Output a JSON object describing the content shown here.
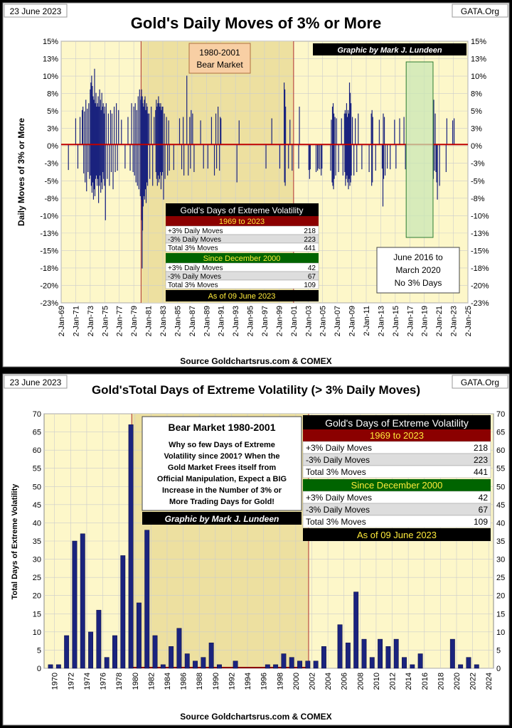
{
  "colors": {
    "plot_bg": "#fdf7c9",
    "bear_bg": "#ede0a0",
    "bar": "#1a237e",
    "zero_line": "#c00000",
    "green_box": "#c9e7b4"
  },
  "chart_data": [
    {
      "type": "bar",
      "date_label": "23 June 2023",
      "source_tag": "GATA.Org",
      "title": "Gold's Daily Moves of 3% or More",
      "ylabel": "Daily Moves  of  3% or More",
      "source": "Source Goldchartsrus.com & COMEX",
      "credit": "Graphic by Mark J. Lundeen",
      "ylim": [
        -23,
        15
      ],
      "y_ticks": [
        "15%",
        "13%",
        "10%",
        "8%",
        "5%",
        "3%",
        "0%",
        "-3%",
        "-5%",
        "-8%",
        "-10%",
        "-13%",
        "-15%",
        "-18%",
        "-20%",
        "-23%"
      ],
      "x_ticks": [
        "2-Jan-69",
        "2-Jan-71",
        "2-Jan-73",
        "2-Jan-75",
        "2-Jan-77",
        "2-Jan-79",
        "2-Jan-81",
        "2-Jan-83",
        "2-Jan-85",
        "2-Jan-87",
        "2-Jan-89",
        "2-Jan-91",
        "2-Jan-93",
        "2-Jan-95",
        "2-Jan-97",
        "2-Jan-99",
        "2-Jan-01",
        "2-Jan-03",
        "2-Jan-05",
        "2-Jan-07",
        "2-Jan-09",
        "2-Jan-11",
        "2-Jan-13",
        "2-Jan-15",
        "2-Jan-17",
        "2-Jan-19",
        "2-Jan-21",
        "2-Jan-23",
        "2-Jan-25"
      ],
      "bear_label": [
        "1980-2001",
        "Bear Market"
      ],
      "no_move_label": [
        "June 2016 to",
        "March 2020",
        "No 3% Days"
      ],
      "moves": [
        [
          1970.0,
          -3.7
        ],
        [
          1971.0,
          3.8
        ],
        [
          1971.3,
          -3.5
        ],
        [
          1971.6,
          4.0
        ],
        [
          1971.9,
          5.0
        ],
        [
          1972.0,
          5.5
        ],
        [
          1972.1,
          -4.2
        ],
        [
          1972.2,
          4.8
        ],
        [
          1972.3,
          -5.5
        ],
        [
          1972.4,
          6.5
        ],
        [
          1972.5,
          -6.8
        ],
        [
          1972.6,
          5.2
        ],
        [
          1972.7,
          -4.0
        ],
        [
          1972.8,
          6.0
        ],
        [
          1972.9,
          -5.0
        ],
        [
          1973.0,
          8.0
        ],
        [
          1973.05,
          -4.5
        ],
        [
          1973.1,
          9.0
        ],
        [
          1973.15,
          -6.0
        ],
        [
          1973.2,
          10.0
        ],
        [
          1973.25,
          -7.0
        ],
        [
          1973.3,
          8.5
        ],
        [
          1973.35,
          -5.5
        ],
        [
          1973.4,
          7.0
        ],
        [
          1973.45,
          -8.0
        ],
        [
          1973.5,
          6.5
        ],
        [
          1973.55,
          -6.5
        ],
        [
          1973.6,
          11.0
        ],
        [
          1973.65,
          -7.5
        ],
        [
          1973.7,
          6.0
        ],
        [
          1973.75,
          -5.0
        ],
        [
          1973.8,
          7.5
        ],
        [
          1973.85,
          -4.5
        ],
        [
          1973.9,
          5.5
        ],
        [
          1973.95,
          -6.0
        ],
        [
          1974.0,
          6.0
        ],
        [
          1974.05,
          -5.0
        ],
        [
          1974.1,
          7.0
        ],
        [
          1974.15,
          -8.5
        ],
        [
          1974.2,
          5.5
        ],
        [
          1974.25,
          -6.0
        ],
        [
          1974.3,
          8.0
        ],
        [
          1974.35,
          -4.5
        ],
        [
          1974.4,
          6.5
        ],
        [
          1974.45,
          -7.0
        ],
        [
          1974.5,
          5.0
        ],
        [
          1974.55,
          -5.5
        ],
        [
          1974.6,
          7.5
        ],
        [
          1974.65,
          -6.5
        ],
        [
          1974.7,
          5.5
        ],
        [
          1974.75,
          -4.0
        ],
        [
          1974.8,
          6.0
        ],
        [
          1974.85,
          -5.0
        ],
        [
          1974.9,
          4.5
        ],
        [
          1974.95,
          -6.0
        ],
        [
          1975.0,
          5.5
        ],
        [
          1975.1,
          -11.0
        ],
        [
          1975.2,
          6.0
        ],
        [
          1975.35,
          -5.0
        ],
        [
          1975.5,
          4.5
        ],
        [
          1975.65,
          -6.0
        ],
        [
          1975.8,
          5.0
        ],
        [
          1975.9,
          -4.0
        ],
        [
          1976.0,
          4.5
        ],
        [
          1976.15,
          -6.5
        ],
        [
          1976.3,
          5.5
        ],
        [
          1976.45,
          -4.0
        ],
        [
          1976.6,
          6.0
        ],
        [
          1976.75,
          -3.8
        ],
        [
          1976.9,
          5.0
        ],
        [
          1977.3,
          3.6
        ],
        [
          1977.8,
          -3.5
        ],
        [
          1978.2,
          4.0
        ],
        [
          1978.5,
          -3.8
        ],
        [
          1978.7,
          6.0
        ],
        [
          1978.9,
          -4.0
        ],
        [
          1979.0,
          5.5
        ],
        [
          1979.1,
          -4.5
        ],
        [
          1979.2,
          6.0
        ],
        [
          1979.3,
          -5.5
        ],
        [
          1979.4,
          5.0
        ],
        [
          1979.5,
          -6.0
        ],
        [
          1979.6,
          7.0
        ],
        [
          1979.7,
          -6.5
        ],
        [
          1979.8,
          8.0
        ],
        [
          1979.9,
          -7.5
        ],
        [
          1979.95,
          6.5
        ],
        [
          1980.0,
          7.0
        ],
        [
          1980.03,
          -8.0
        ],
        [
          1980.06,
          8.0
        ],
        [
          1980.09,
          -11.0
        ],
        [
          1980.12,
          6.5
        ],
        [
          1980.15,
          -18.0
        ],
        [
          1980.18,
          7.0
        ],
        [
          1980.21,
          -12.5
        ],
        [
          1980.25,
          6.0
        ],
        [
          1980.3,
          -9.0
        ],
        [
          1980.35,
          5.5
        ],
        [
          1980.4,
          -7.5
        ],
        [
          1980.45,
          6.5
        ],
        [
          1980.5,
          -8.0
        ],
        [
          1980.55,
          7.0
        ],
        [
          1980.6,
          -6.5
        ],
        [
          1980.65,
          5.0
        ],
        [
          1980.7,
          -8.5
        ],
        [
          1980.75,
          6.0
        ],
        [
          1980.8,
          -5.5
        ],
        [
          1980.85,
          5.5
        ],
        [
          1980.9,
          -6.0
        ],
        [
          1980.95,
          4.5
        ],
        [
          1981.1,
          4.5
        ],
        [
          1981.2,
          -5.0
        ],
        [
          1981.4,
          5.5
        ],
        [
          1981.6,
          -6.0
        ],
        [
          1981.8,
          4.0
        ],
        [
          1982.0,
          5.0
        ],
        [
          1982.05,
          -4.0
        ],
        [
          1982.1,
          6.5
        ],
        [
          1982.15,
          -5.0
        ],
        [
          1982.2,
          5.5
        ],
        [
          1982.25,
          -6.0
        ],
        [
          1982.3,
          6.0
        ],
        [
          1982.35,
          -4.5
        ],
        [
          1982.4,
          7.0
        ],
        [
          1982.45,
          -5.5
        ],
        [
          1982.5,
          6.0
        ],
        [
          1982.55,
          -5.0
        ],
        [
          1982.6,
          5.5
        ],
        [
          1982.65,
          -4.0
        ],
        [
          1982.7,
          6.0
        ],
        [
          1982.75,
          -6.5
        ],
        [
          1982.8,
          5.0
        ],
        [
          1982.85,
          -4.5
        ],
        [
          1982.9,
          5.5
        ],
        [
          1982.95,
          -4.0
        ],
        [
          1983.0,
          5.5
        ],
        [
          1983.1,
          -8.0
        ],
        [
          1983.2,
          4.5
        ],
        [
          1983.3,
          -5.0
        ],
        [
          1983.5,
          4.0
        ],
        [
          1983.65,
          -4.5
        ],
        [
          1983.8,
          3.5
        ],
        [
          1983.9,
          -3.8
        ],
        [
          1984.5,
          -3.7
        ],
        [
          1985.3,
          3.8
        ],
        [
          1985.6,
          -3.6
        ],
        [
          1985.8,
          4.0
        ],
        [
          1985.9,
          -4.5
        ],
        [
          1986.3,
          10.0
        ],
        [
          1986.5,
          -4.5
        ],
        [
          1986.7,
          4.0
        ],
        [
          1986.8,
          -3.5
        ],
        [
          1986.9,
          5.0
        ],
        [
          1987.1,
          4.5
        ],
        [
          1987.3,
          -4.0
        ],
        [
          1988.2,
          3.5
        ],
        [
          1988.6,
          -3.5
        ],
        [
          1989.2,
          -3.5
        ],
        [
          1989.7,
          4.0
        ],
        [
          1990.1,
          -4.5
        ],
        [
          1990.3,
          4.5
        ],
        [
          1990.4,
          -3.5
        ],
        [
          1990.6,
          5.5
        ],
        [
          1990.8,
          -3.8
        ],
        [
          1990.9,
          4.0
        ],
        [
          1991.0,
          3.8
        ],
        [
          1993.2,
          -5.5
        ],
        [
          1993.5,
          3.5
        ],
        [
          1997.2,
          -3.5
        ],
        [
          1998.0,
          3.8
        ],
        [
          1999.1,
          -3.5
        ],
        [
          1999.7,
          9.0
        ],
        [
          1999.75,
          -5.5
        ],
        [
          1999.8,
          8.0
        ],
        [
          1999.85,
          -6.0
        ],
        [
          1999.9,
          5.5
        ],
        [
          2000.3,
          -3.5
        ],
        [
          2000.5,
          3.6
        ],
        [
          2000.8,
          -3.8
        ],
        [
          2001.7,
          -3.5
        ],
        [
          2001.8,
          5.5
        ],
        [
          2003.1,
          -3.7
        ],
        [
          2003.2,
          -5.0
        ],
        [
          2003.3,
          -3.6
        ],
        [
          2004.1,
          -4.0
        ],
        [
          2004.3,
          -3.8
        ],
        [
          2004.4,
          -3.5
        ],
        [
          2004.6,
          -3.6
        ],
        [
          2004.8,
          -4.5
        ],
        [
          2004.9,
          -3.5
        ],
        [
          2006.1,
          -3.8
        ],
        [
          2006.2,
          3.6
        ],
        [
          2006.3,
          -5.5
        ],
        [
          2006.35,
          5.5
        ],
        [
          2006.4,
          -6.0
        ],
        [
          2006.45,
          6.0
        ],
        [
          2006.5,
          -6.5
        ],
        [
          2006.55,
          4.5
        ],
        [
          2006.6,
          -5.0
        ],
        [
          2006.7,
          4.0
        ],
        [
          2006.8,
          -4.5
        ],
        [
          2006.9,
          3.8
        ],
        [
          2007.2,
          -4.0
        ],
        [
          2007.6,
          3.8
        ],
        [
          2007.8,
          -4.5
        ],
        [
          2008.0,
          4.5
        ],
        [
          2008.05,
          -4.0
        ],
        [
          2008.1,
          5.0
        ],
        [
          2008.15,
          -6.0
        ],
        [
          2008.2,
          4.5
        ],
        [
          2008.25,
          -5.0
        ],
        [
          2008.3,
          6.0
        ],
        [
          2008.35,
          -4.5
        ],
        [
          2008.4,
          4.0
        ],
        [
          2008.45,
          -5.5
        ],
        [
          2008.5,
          5.0
        ],
        [
          2008.55,
          -6.5
        ],
        [
          2008.6,
          4.5
        ],
        [
          2008.65,
          -5.0
        ],
        [
          2008.7,
          9.0
        ],
        [
          2008.75,
          -6.0
        ],
        [
          2008.8,
          7.5
        ],
        [
          2008.85,
          -5.5
        ],
        [
          2008.9,
          6.0
        ],
        [
          2008.95,
          -4.5
        ],
        [
          2009.1,
          4.0
        ],
        [
          2009.3,
          -4.5
        ],
        [
          2009.5,
          3.8
        ],
        [
          2009.7,
          -4.0
        ],
        [
          2009.9,
          4.5
        ],
        [
          2010.4,
          -3.6
        ],
        [
          2011.4,
          -4.0
        ],
        [
          2011.7,
          4.5
        ],
        [
          2011.75,
          -6.0
        ],
        [
          2011.8,
          5.0
        ],
        [
          2011.85,
          -5.5
        ],
        [
          2011.9,
          4.0
        ],
        [
          2012.3,
          -3.8
        ],
        [
          2012.8,
          3.6
        ],
        [
          2013.2,
          -3.5
        ],
        [
          2013.3,
          -9.0
        ],
        [
          2013.35,
          4.5
        ],
        [
          2013.4,
          -5.0
        ],
        [
          2013.5,
          4.0
        ],
        [
          2013.6,
          -4.5
        ],
        [
          2013.9,
          -3.5
        ],
        [
          2014.3,
          -3.6
        ],
        [
          2014.9,
          3.6
        ],
        [
          2015.1,
          -3.5
        ],
        [
          2015.6,
          3.8
        ],
        [
          2016.2,
          4.0
        ],
        [
          2016.4,
          -3.6
        ],
        [
          2020.2,
          -4.5
        ],
        [
          2020.25,
          -5.0
        ],
        [
          2020.3,
          6.5
        ],
        [
          2020.4,
          -3.8
        ],
        [
          2020.5,
          4.5
        ],
        [
          2020.6,
          -4.0
        ],
        [
          2020.7,
          -5.5
        ],
        [
          2020.8,
          -8.0
        ],
        [
          2021.1,
          -6.0
        ],
        [
          2022.0,
          -4.0
        ],
        [
          2022.1,
          3.8
        ],
        [
          2022.9,
          3.5
        ],
        [
          2023.1,
          3.8
        ]
      ]
    },
    {
      "type": "bar",
      "date_label": "23 June 2023",
      "source_tag": "GATA.Org",
      "title": "Gold'sTotal Days of Extreme Volatility (> 3% Daily Moves)",
      "ylabel": "Total Days of Extreme Volatility",
      "source": "Source  Goldchartsrus.com  & COMEX",
      "credit": "Graphic by Mark J. Lundeen",
      "ylim": [
        0,
        70
      ],
      "y_ticks": [
        0,
        5,
        10,
        15,
        20,
        25,
        30,
        35,
        40,
        45,
        50,
        55,
        60,
        65,
        70
      ],
      "x_ticks": [
        "1970",
        "1972",
        "1974",
        "1976",
        "1978",
        "1980",
        "1982",
        "1984",
        "1986",
        "1988",
        "1990",
        "1992",
        "1994",
        "1996",
        "1998",
        "2000",
        "2002",
        "2004",
        "2006",
        "2008",
        "2010",
        "2012",
        "2014",
        "2016",
        "2018",
        "2020",
        "2022",
        "2024"
      ],
      "categories": [
        1969,
        1970,
        1971,
        1972,
        1973,
        1974,
        1975,
        1976,
        1977,
        1978,
        1979,
        1980,
        1981,
        1982,
        1983,
        1984,
        1985,
        1986,
        1987,
        1988,
        1989,
        1990,
        1991,
        1992,
        1993,
        1994,
        1995,
        1996,
        1997,
        1998,
        1999,
        2000,
        2001,
        2002,
        2003,
        2004,
        2005,
        2006,
        2007,
        2008,
        2009,
        2010,
        2011,
        2012,
        2013,
        2014,
        2015,
        2016,
        2017,
        2018,
        2019,
        2020,
        2021,
        2022,
        2023
      ],
      "values": [
        1,
        1,
        9,
        35,
        37,
        10,
        16,
        3,
        9,
        31,
        67,
        18,
        38,
        9,
        1,
        6,
        11,
        4,
        2,
        3,
        7,
        1,
        0,
        2,
        0,
        0,
        0,
        1,
        1,
        4,
        3,
        2,
        2,
        2,
        6,
        0,
        12,
        7,
        21,
        8,
        3,
        8,
        6,
        8,
        3,
        1,
        4,
        0,
        0,
        0,
        8,
        1,
        3,
        1,
        0
      ],
      "bear_title": "Bear Market 1980-2001",
      "bear_note": [
        "Why so few Days of Extreme",
        "Volatility since 2001?  When the",
        "Gold Market Frees itself from",
        "Official Manipulation,  Expect a BIG",
        "Increase in the Number of 3% or",
        "More Trading Days for Gold!"
      ]
    }
  ],
  "volatility_table": {
    "title": "Gold's Days of Extreme Volatility",
    "period1": "1969 to 2023",
    "rows1": [
      [
        "+3% Daily Moves",
        "218"
      ],
      [
        "-3% Daily Moves",
        "223"
      ],
      [
        "Total 3% Moves",
        "441"
      ]
    ],
    "period2": "Since December 2000",
    "rows2": [
      [
        "+3% Daily Moves",
        "42"
      ],
      [
        "-3% Daily Moves",
        "67"
      ],
      [
        "Total 3% Moves",
        "109"
      ]
    ],
    "as_of": "As of 09 June 2023"
  }
}
